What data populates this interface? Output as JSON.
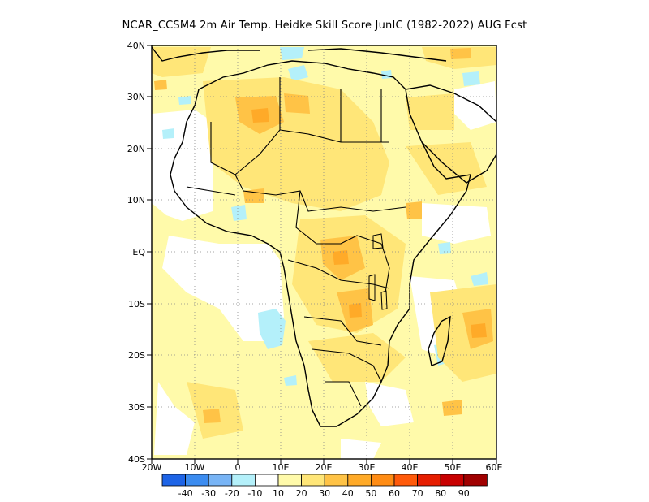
{
  "title": "NCAR_CCSM4  2m Air Temp. Heidke Skill Score JunIC (1982-2022) AUG Fcst",
  "map": {
    "lon_range": [
      -20,
      60
    ],
    "lat_range": [
      -40,
      40
    ],
    "x_ticks": [
      "20W",
      "10W",
      "0",
      "10E",
      "20E",
      "30E",
      "40E",
      "50E",
      "60E"
    ],
    "y_ticks": [
      "40N",
      "30N",
      "20N",
      "10N",
      "EQ",
      "10S",
      "20S",
      "30S",
      "40S"
    ],
    "grid": "dotted",
    "field": "Heidke skill score (2m air temperature)",
    "region": "Africa"
  },
  "colorbar": {
    "colors": [
      "#1e64e6",
      "#3c8cf0",
      "#78b4f5",
      "#b4f0fa",
      "#ffffff",
      "#fffaaa",
      "#ffe678",
      "#ffc346",
      "#ffaa28",
      "#ff8c14",
      "#ff5a0a",
      "#e61e00",
      "#c80000",
      "#a00000"
    ],
    "labels": [
      "-40",
      "-30",
      "-20",
      "-10",
      "10",
      "20",
      "30",
      "40",
      "50",
      "60",
      "70",
      "80",
      "90"
    ]
  }
}
